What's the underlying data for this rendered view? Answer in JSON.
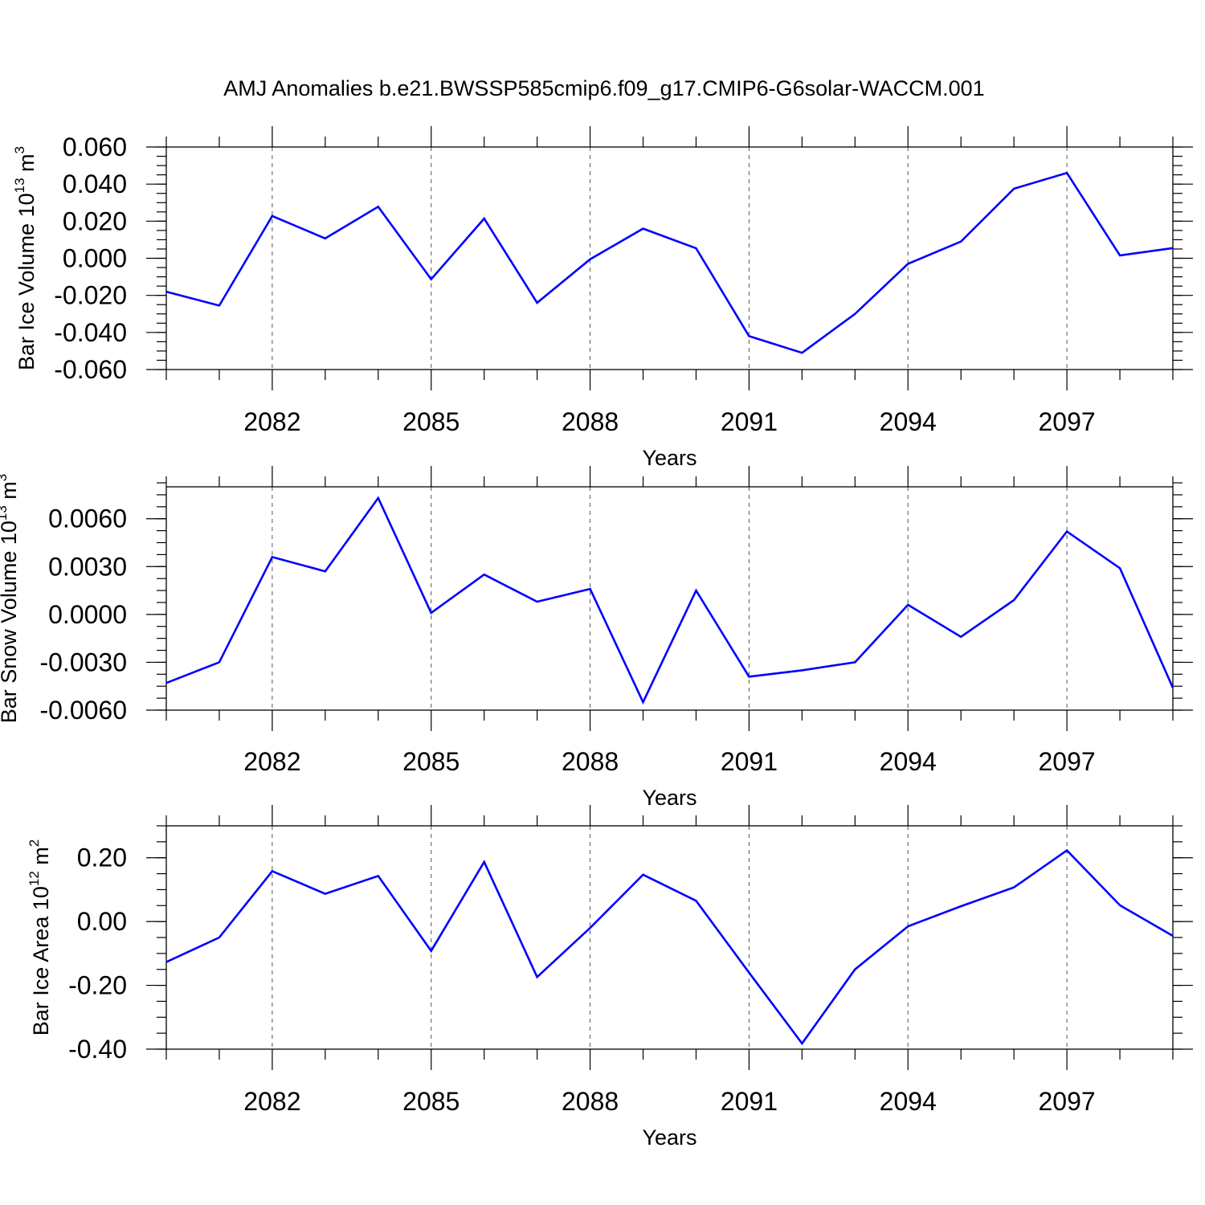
{
  "title": "AMJ Anomalies b.e21.BWSSP585cmip6.f09_g17.CMIP6-G6solar-WACCM.001",
  "chart_data": [
    {
      "type": "line",
      "ylabel": {
        "text": "Bar Ice Volume 10",
        "sup1": "13",
        "unit": " m",
        "sup2": "3"
      },
      "xlabel": "Years",
      "xlim": [
        2080,
        2099
      ],
      "ylim": [
        -0.06,
        0.06
      ],
      "yticks": [
        -0.06,
        -0.04,
        -0.02,
        0.0,
        0.02,
        0.04,
        0.06
      ],
      "ytick_labels": [
        "-0.060",
        "-0.040",
        "-0.020",
        "0.000",
        "0.020",
        "0.040",
        "0.060"
      ],
      "y_minor_step": 0.005,
      "xticks": [
        2082,
        2085,
        2088,
        2091,
        2094,
        2097
      ],
      "xtick_labels": [
        "2082",
        "2085",
        "2088",
        "2091",
        "2094",
        "2097"
      ],
      "grid_x": true,
      "color": "#0000ff",
      "x": [
        2080,
        2081,
        2082,
        2083,
        2084,
        2085,
        2086,
        2087,
        2088,
        2089,
        2090,
        2091,
        2092,
        2093,
        2094,
        2095,
        2096,
        2097,
        2098,
        2099
      ],
      "y": [
        -0.018,
        -0.0255,
        0.0228,
        0.0107,
        0.0278,
        -0.0113,
        0.0214,
        -0.024,
        -0.0005,
        0.016,
        0.0054,
        -0.042,
        -0.051,
        -0.03,
        -0.003,
        0.009,
        0.0375,
        0.046,
        0.0015,
        0.0055
      ]
    },
    {
      "type": "line",
      "ylabel": {
        "text": "Bar Snow Volume 10",
        "sup1": "13",
        "unit": " m",
        "sup2": "3"
      },
      "xlabel": "Years",
      "xlim": [
        2080,
        2099
      ],
      "ylim": [
        -0.006,
        0.008
      ],
      "yticks": [
        -0.006,
        -0.003,
        0.0,
        0.003,
        0.006
      ],
      "ytick_labels": [
        "-0.0060",
        "-0.0030",
        "0.0000",
        "0.0030",
        "0.0060"
      ],
      "y_minor_step": 0.00075,
      "xticks": [
        2082,
        2085,
        2088,
        2091,
        2094,
        2097
      ],
      "xtick_labels": [
        "2082",
        "2085",
        "2088",
        "2091",
        "2094",
        "2097"
      ],
      "grid_x": true,
      "color": "#0000ff",
      "x": [
        2080,
        2081,
        2082,
        2083,
        2084,
        2085,
        2086,
        2087,
        2088,
        2089,
        2090,
        2091,
        2092,
        2093,
        2094,
        2095,
        2096,
        2097,
        2098,
        2099
      ],
      "y": [
        -0.0043,
        -0.003,
        0.0036,
        0.0027,
        0.0073,
        0.0001,
        0.0025,
        0.0008,
        0.0016,
        -0.0055,
        0.0015,
        -0.0039,
        -0.0035,
        -0.003,
        0.0006,
        -0.0014,
        0.0009,
        0.0052,
        0.0029,
        -0.0046
      ]
    },
    {
      "type": "line",
      "ylabel": {
        "text": "Bar Ice Area 10",
        "sup1": "12",
        "unit": " m",
        "sup2": "2"
      },
      "xlabel": "Years",
      "xlim": [
        2080,
        2099
      ],
      "ylim": [
        -0.4,
        0.3
      ],
      "yticks": [
        -0.4,
        -0.2,
        0.0,
        0.2
      ],
      "ytick_labels": [
        "-0.40",
        "-0.20",
        "0.00",
        "0.20"
      ],
      "y_minor_step": 0.05,
      "xticks": [
        2082,
        2085,
        2088,
        2091,
        2094,
        2097
      ],
      "xtick_labels": [
        "2082",
        "2085",
        "2088",
        "2091",
        "2094",
        "2097"
      ],
      "grid_x": true,
      "color": "#0000ff",
      "x": [
        2080,
        2081,
        2082,
        2083,
        2084,
        2085,
        2086,
        2087,
        2088,
        2089,
        2090,
        2091,
        2092,
        2093,
        2094,
        2095,
        2096,
        2097,
        2098,
        2099
      ],
      "y": [
        -0.127,
        -0.05,
        0.158,
        0.087,
        0.143,
        -0.092,
        0.187,
        -0.174,
        -0.02,
        0.147,
        0.065,
        -0.16,
        -0.382,
        -0.15,
        -0.015,
        0.048,
        0.107,
        0.223,
        0.051,
        -0.045
      ]
    }
  ]
}
